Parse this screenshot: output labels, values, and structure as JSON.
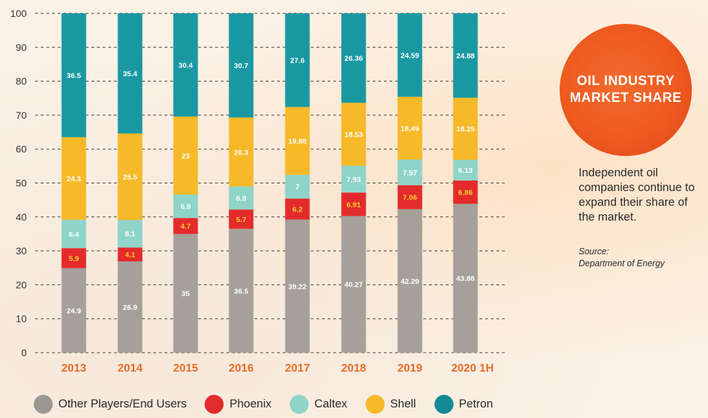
{
  "title_badge": "OIL INDUSTRY MARKET SHARE",
  "note": "Independent oil companies continue to expand their share of the market.",
  "source_label": "Source:",
  "source_name": "Department of Energy",
  "colors": {
    "Other Players/End Users": "#a5a09a",
    "Phoenix": "#e42b2b",
    "Caltex": "#8fd4c9",
    "Shell": "#f6b928",
    "Petron": "#1a98a2",
    "year_label": "#ea6a27",
    "badge": "#ee5a20"
  },
  "legend": [
    {
      "name": "Other Players/End Users",
      "color": "#9b9893"
    },
    {
      "name": "Phoenix",
      "color": "#e42b2b"
    },
    {
      "name": "Caltex",
      "color": "#8fd4c9"
    },
    {
      "name": "Shell",
      "color": "#f6b928"
    },
    {
      "name": "Petron",
      "color": "#158a94"
    }
  ],
  "chart_data": {
    "type": "bar",
    "stacked": true,
    "title": "OIL INDUSTRY MARKET SHARE",
    "xlabel": "",
    "ylabel": "",
    "ylim": [
      0,
      100
    ],
    "yticks": [
      0,
      10,
      20,
      30,
      40,
      50,
      60,
      70,
      80,
      90,
      100
    ],
    "grid": true,
    "legend_position": "bottom",
    "categories": [
      "2013",
      "2014",
      "2015",
      "2016",
      "2017",
      "2018",
      "2019",
      "2020 1H"
    ],
    "series": [
      {
        "name": "Other Players/End Users",
        "values": [
          24.9,
          26.9,
          35,
          36.5,
          39.22,
          40.27,
          42.29,
          43.88
        ]
      },
      {
        "name": "Phoenix",
        "values": [
          5.9,
          4.1,
          4.7,
          5.7,
          6.2,
          6.91,
          7.06,
          6.86
        ]
      },
      {
        "name": "Caltex",
        "values": [
          8.4,
          8.1,
          6.9,
          6.8,
          7,
          7.93,
          7.57,
          6.13
        ]
      },
      {
        "name": "Shell",
        "values": [
          24.3,
          25.5,
          23,
          20.3,
          19.98,
          18.53,
          18.49,
          18.25
        ]
      },
      {
        "name": "Petron",
        "values": [
          36.5,
          35.4,
          30.4,
          30.7,
          27.6,
          26.36,
          24.59,
          24.88
        ]
      }
    ]
  }
}
